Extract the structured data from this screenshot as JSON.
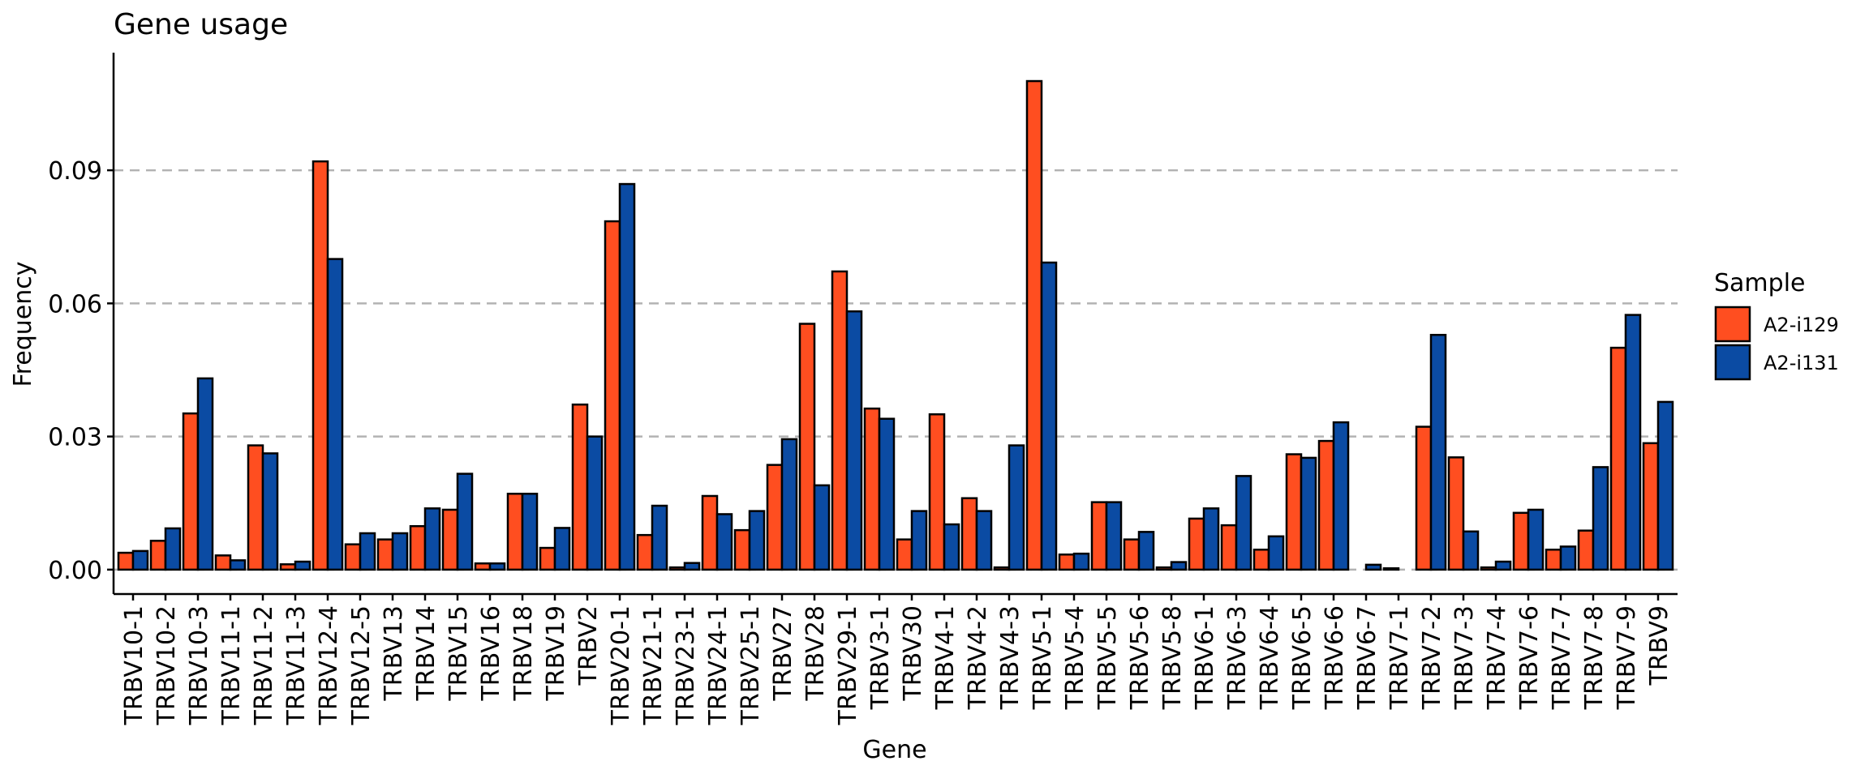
{
  "chart_data": {
    "type": "bar",
    "title": "Gene usage",
    "xlabel": "Gene",
    "ylabel": "Frequency",
    "ylim": [
      -0.0055,
      0.1165
    ],
    "yticks": [
      0.0,
      0.03,
      0.06,
      0.09
    ],
    "ytick_labels": [
      "0.00",
      "0.03",
      "0.06",
      "0.09"
    ],
    "grid": "horizontal dashed",
    "legend": {
      "title": "Sample",
      "position": "right"
    },
    "categories": [
      "TRBV10-1",
      "TRBV10-2",
      "TRBV10-3",
      "TRBV11-1",
      "TRBV11-2",
      "TRBV11-3",
      "TRBV12-4",
      "TRBV12-5",
      "TRBV13",
      "TRBV14",
      "TRBV15",
      "TRBV16",
      "TRBV18",
      "TRBV19",
      "TRBV2",
      "TRBV20-1",
      "TRBV21-1",
      "TRBV23-1",
      "TRBV24-1",
      "TRBV25-1",
      "TRBV27",
      "TRBV28",
      "TRBV29-1",
      "TRBV3-1",
      "TRBV30",
      "TRBV4-1",
      "TRBV4-2",
      "TRBV4-3",
      "TRBV5-1",
      "TRBV5-4",
      "TRBV5-5",
      "TRBV5-6",
      "TRBV5-8",
      "TRBV6-1",
      "TRBV6-3",
      "TRBV6-4",
      "TRBV6-5",
      "TRBV6-6",
      "TRBV6-7",
      "TRBV7-1",
      "TRBV7-2",
      "TRBV7-3",
      "TRBV7-4",
      "TRBV7-6",
      "TRBV7-7",
      "TRBV7-8",
      "TRBV7-9",
      "TRBV9"
    ],
    "series": [
      {
        "name": "A2-i129",
        "color": "#ff4e20",
        "values": [
          0.0038,
          0.0065,
          0.0352,
          0.0032,
          0.028,
          0.0012,
          0.092,
          0.0057,
          0.0068,
          0.0098,
          0.0135,
          0.0014,
          0.0171,
          0.0049,
          0.0372,
          0.0785,
          0.0078,
          0.0005,
          0.0166,
          0.0089,
          0.0236,
          0.0554,
          0.0672,
          0.0363,
          0.0068,
          0.035,
          0.0161,
          0.0005,
          0.1101,
          0.0034,
          0.0152,
          0.0068,
          0.0005,
          0.0115,
          0.01,
          0.0045,
          0.026,
          0.029,
          0.0,
          0.0003,
          0.0322,
          0.0253,
          0.0005,
          0.0128,
          0.0045,
          0.0088,
          0.05,
          0.0285
        ]
      },
      {
        "name": "A2-i131",
        "color": "#0b4ba3",
        "values": [
          0.0042,
          0.0093,
          0.0431,
          0.0021,
          0.0262,
          0.0018,
          0.07,
          0.0082,
          0.0082,
          0.0138,
          0.0216,
          0.0014,
          0.0171,
          0.0094,
          0.03,
          0.0869,
          0.0144,
          0.0015,
          0.0125,
          0.0132,
          0.0294,
          0.019,
          0.0582,
          0.034,
          0.0132,
          0.0102,
          0.0132,
          0.028,
          0.0692,
          0.0036,
          0.0152,
          0.0085,
          0.0017,
          0.0138,
          0.0211,
          0.0075,
          0.0252,
          0.0332,
          0.0011,
          0.0,
          0.0529,
          0.0086,
          0.0018,
          0.0135,
          0.0052,
          0.0231,
          0.0574,
          0.0378
        ]
      }
    ]
  }
}
